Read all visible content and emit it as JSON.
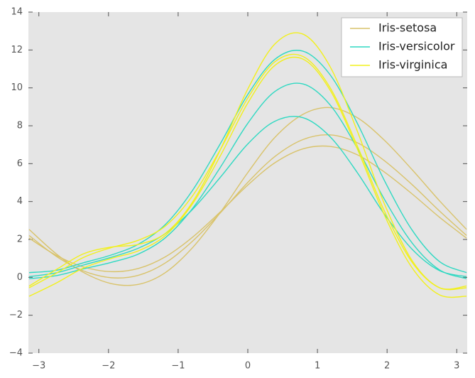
{
  "chart_data": {
    "type": "andrews-curves",
    "x": [
      -3.14,
      -2.75,
      -2.36,
      -1.96,
      -1.57,
      -1.18,
      -0.79,
      -0.39,
      0,
      0.39,
      0.79,
      1.18,
      1.57,
      1.96,
      2.36,
      2.75,
      3.14
    ],
    "series": [
      {
        "name": "Iris-setosa",
        "color": "#d9c36b",
        "values": [
          [
            2.21,
            1.11,
            0.34,
            -0.02,
            0.11,
            0.77,
            1.92,
            3.42,
            5.01,
            6.38,
            7.27,
            7.52,
            7.11,
            6.16,
            4.89,
            3.51,
            2.21
          ],
          [
            2.07,
            1.16,
            0.55,
            0.3,
            0.47,
            1.09,
            2.13,
            3.47,
            4.87,
            6.05,
            6.78,
            6.91,
            6.47,
            5.56,
            4.4,
            3.18,
            2.07
          ],
          [
            2.53,
            1.24,
            0.26,
            -0.33,
            -0.37,
            0.26,
            1.58,
            3.45,
            5.53,
            7.39,
            8.6,
            8.96,
            8.43,
            7.24,
            5.68,
            4.05,
            2.53
          ]
        ]
      },
      {
        "name": "Iris-versicolor",
        "color": "#2ed9c2",
        "values": [
          [
            0.25,
            0.37,
            0.77,
            1.18,
            1.75,
            2.8,
            4.61,
            7.08,
            9.65,
            11.51,
            11.94,
            10.7,
            8.15,
            5.12,
            2.49,
            0.84,
            0.25
          ],
          [
            -0.07,
            0.09,
            0.45,
            0.79,
            1.23,
            2.1,
            3.65,
            5.83,
            8.13,
            9.81,
            10.21,
            9.11,
            6.83,
            4.13,
            1.81,
            0.4,
            -0.07
          ],
          [
            0.04,
            0.24,
            0.65,
            1.06,
            1.54,
            2.32,
            3.6,
            5.3,
            7.04,
            8.24,
            8.43,
            7.43,
            5.54,
            3.34,
            1.48,
            0.36,
            0.04
          ]
        ]
      },
      {
        "name": "Iris-virginica",
        "color": "#f2f01c",
        "values": [
          [
            -0.55,
            0.22,
            1.05,
            1.57,
            1.96,
            2.72,
            4.32,
            6.77,
            9.46,
            11.38,
            11.66,
            10.02,
            6.96,
            3.51,
            0.79,
            -0.55,
            -0.55
          ],
          [
            -1.0,
            -0.3,
            0.49,
            1.0,
            1.4,
            2.22,
            3.9,
            6.44,
            9.2,
            11.19,
            11.52,
            9.89,
            6.8,
            3.3,
            0.5,
            -0.92,
            -1.0
          ],
          [
            -0.46,
            0.41,
            1.24,
            1.6,
            1.74,
            2.33,
            3.99,
            6.77,
            9.94,
            12.32,
            12.84,
            11.13,
            7.74,
            3.89,
            0.88,
            -0.54,
            -0.46
          ]
        ]
      }
    ],
    "xlim": [
      -3.15,
      3.15
    ],
    "xticks": [
      {
        "value": -3,
        "label": "−3"
      },
      {
        "value": -2,
        "label": "−2"
      },
      {
        "value": -1,
        "label": "−1"
      },
      0,
      1,
      2,
      3
    ],
    "ylim": [
      -4,
      14
    ],
    "yticks": [
      {
        "value": -4,
        "label": "−4"
      },
      {
        "value": -2,
        "label": "−2"
      },
      0,
      2,
      4,
      6,
      8,
      10,
      12,
      14
    ],
    "grid": false,
    "legend": "upper right"
  }
}
